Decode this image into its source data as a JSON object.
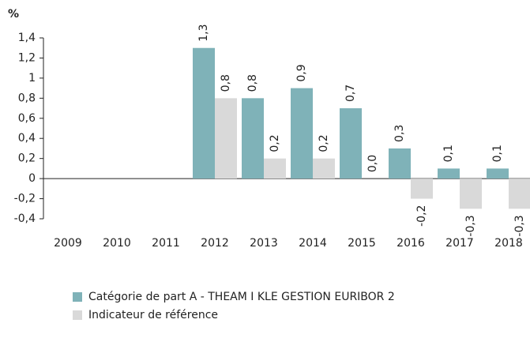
{
  "chart_data": {
    "type": "bar",
    "y_axis_label": "%",
    "categories": [
      "2009",
      "2010",
      "2011",
      "2012",
      "2013",
      "2014",
      "2015",
      "2016",
      "2017",
      "2018"
    ],
    "series": [
      {
        "name": "Catégorie de part A - THEAM I KLE GESTION EURIBOR 2",
        "color": "#7fb2b8",
        "values": [
          null,
          null,
          null,
          1.3,
          0.8,
          0.9,
          0.7,
          0.3,
          0.1,
          0.1
        ],
        "value_labels": [
          null,
          null,
          null,
          "1,3",
          "0,8",
          "0,9",
          "0,7",
          "0,3",
          "0,1",
          "0,1"
        ]
      },
      {
        "name": "Indicateur de référence",
        "color": "#d9d9d9",
        "values": [
          null,
          null,
          null,
          0.8,
          0.2,
          0.2,
          0.0,
          -0.2,
          -0.3,
          -0.3
        ],
        "value_labels": [
          null,
          null,
          null,
          "0,8",
          "0,2",
          "0,2",
          "0,0",
          "-0,2",
          "-0,3",
          "-0,3"
        ]
      }
    ],
    "ylim": [
      -0.4,
      1.4
    ],
    "yticks": [
      {
        "value": 1.4,
        "label": "1,4"
      },
      {
        "value": 1.2,
        "label": "1,2"
      },
      1,
      {
        "value": 0.8,
        "label": "0,8"
      },
      {
        "value": 0.6,
        "label": "0,6"
      },
      {
        "value": 0.4,
        "label": "0,4"
      },
      {
        "value": 0.2,
        "label": "0,2"
      },
      0,
      {
        "value": -0.2,
        "label": "-0,2"
      },
      {
        "value": -0.4,
        "label": "-0,4"
      }
    ],
    "grid": false
  }
}
